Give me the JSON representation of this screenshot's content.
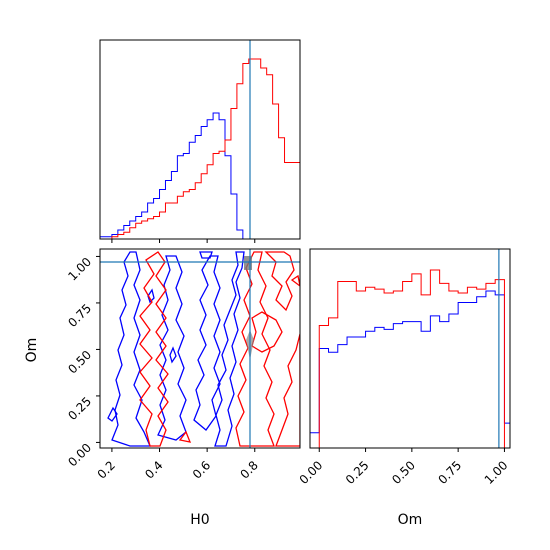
{
  "chart_data": [
    {
      "type": "histogram",
      "panel": "H0 marginal",
      "x_range": [
        0.15,
        0.99
      ],
      "bin_edges": [
        0.15,
        0.175,
        0.2,
        0.225,
        0.25,
        0.275,
        0.3,
        0.325,
        0.35,
        0.375,
        0.4,
        0.425,
        0.45,
        0.475,
        0.5,
        0.525,
        0.55,
        0.575,
        0.6,
        0.625,
        0.65,
        0.675,
        0.7,
        0.725,
        0.75,
        0.775,
        0.8,
        0.825,
        0.85,
        0.875,
        0.9,
        0.925,
        0.95,
        0.975,
        1.0
      ],
      "series": [
        {
          "color": "#0000ff",
          "values": [
            0.01,
            0.01,
            0.02,
            0.04,
            0.06,
            0.08,
            0.1,
            0.12,
            0.16,
            0.18,
            0.22,
            0.26,
            0.3,
            0.37,
            0.38,
            0.43,
            0.46,
            0.5,
            0.53,
            0.56,
            0.53,
            0.37,
            0.2,
            0.04,
            0.0,
            0.0,
            0.0,
            0.0,
            0.0,
            0.0,
            0.0,
            0.0,
            0.0,
            0.0
          ]
        },
        {
          "color": "#ff0000",
          "values": [
            0.0,
            0.0,
            0.01,
            0.02,
            0.03,
            0.05,
            0.07,
            0.08,
            0.09,
            0.1,
            0.12,
            0.16,
            0.16,
            0.19,
            0.21,
            0.22,
            0.25,
            0.29,
            0.33,
            0.38,
            0.39,
            0.44,
            0.58,
            0.69,
            0.78,
            0.8,
            0.8,
            0.76,
            0.73,
            0.6,
            0.45,
            0.34,
            0.34,
            0.34
          ]
        }
      ],
      "truth_line": 0.78
    },
    {
      "type": "contour",
      "panel": "H0 vs Om joint",
      "xlabel": "H0",
      "ylabel": "Om",
      "x_range": [
        0.15,
        0.99
      ],
      "y_range": [
        -0.03,
        1.04
      ],
      "x_ticks": [
        "0.2",
        "0.4",
        "0.6",
        "0.8"
      ],
      "y_ticks": [
        "0.00",
        "0.25",
        "0.50",
        "0.75",
        "1.00"
      ],
      "truth": {
        "H0": 0.78,
        "Om": 0.97
      },
      "series": [
        {
          "color": "#0000ff",
          "description": "blue contours, center H0 about 0.55"
        },
        {
          "color": "#ff0000",
          "description": "red contours, center H0 about 0.75"
        }
      ]
    },
    {
      "type": "histogram",
      "panel": "Om marginal",
      "xlabel": "Om",
      "x_range": [
        -0.05,
        1.03
      ],
      "x_ticks": [
        "0.00",
        "0.25",
        "0.50",
        "0.75",
        "1.00"
      ],
      "bin_edges": [
        -0.05,
        0.0,
        0.05,
        0.1,
        0.15,
        0.2,
        0.25,
        0.3,
        0.35,
        0.4,
        0.45,
        0.5,
        0.55,
        0.6,
        0.65,
        0.7,
        0.75,
        0.8,
        0.85,
        0.9,
        0.95,
        1.0,
        1.03
      ],
      "series": [
        {
          "color": "#0000ff",
          "values": [
            0.08,
            0.52,
            0.5,
            0.54,
            0.58,
            0.58,
            0.61,
            0.63,
            0.62,
            0.65,
            0.66,
            0.66,
            0.61,
            0.69,
            0.66,
            0.7,
            0.76,
            0.76,
            0.79,
            0.82,
            0.8,
            0.13
          ]
        },
        {
          "color": "#ff0000",
          "values": [
            0.0,
            0.64,
            0.68,
            0.87,
            0.87,
            0.82,
            0.84,
            0.83,
            0.81,
            0.82,
            0.87,
            0.91,
            0.8,
            0.93,
            0.86,
            0.82,
            0.81,
            0.84,
            0.83,
            0.86,
            0.88,
            0.0
          ]
        }
      ],
      "truth_line": 0.97
    }
  ]
}
